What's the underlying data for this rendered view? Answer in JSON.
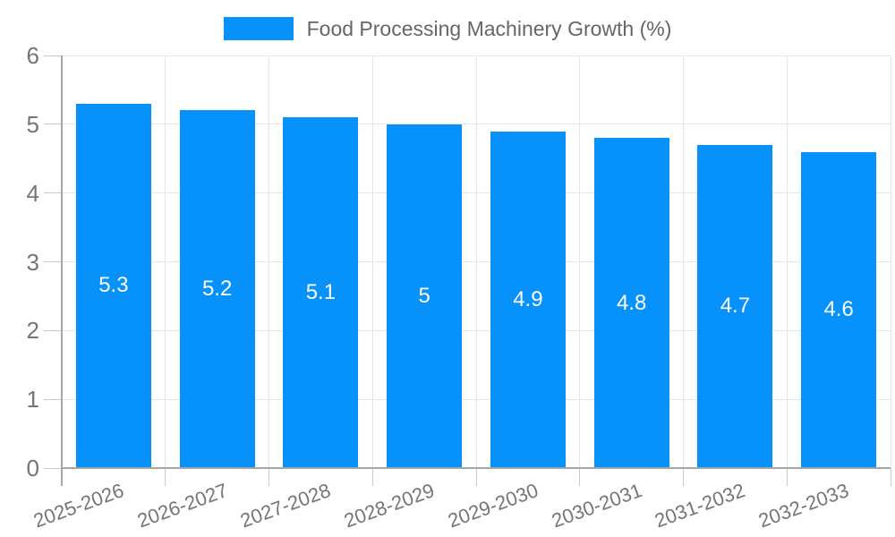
{
  "chart_data": {
    "type": "bar",
    "title": "Food Processing Machinery Growth (%)",
    "categories": [
      "2025-2026",
      "2026-2027",
      "2027-2028",
      "2028-2029",
      "2029-2030",
      "2030-2031",
      "2031-2032",
      "2032-2033"
    ],
    "values": [
      5.3,
      5.2,
      5.1,
      5,
      4.9,
      4.8,
      4.7,
      4.6
    ],
    "xlabel": "",
    "ylabel": "",
    "ylim": [
      0,
      6
    ],
    "yticks": [
      0,
      1,
      2,
      3,
      4,
      5,
      6
    ],
    "grid": true,
    "legend_position": "top",
    "bar_value_labels_shown": true
  },
  "legend": {
    "label": "Food Processing Machinery Growth (%)"
  },
  "colors": {
    "bar": "#0691fb",
    "legend_text": "#666666",
    "tick_text": "#757575",
    "axis_line": "#a6a6a6",
    "gridline": "#e6e6e6",
    "tick_mark": "#c9c9c9",
    "bar_label": "#ffffff",
    "background": "#ffffff"
  }
}
